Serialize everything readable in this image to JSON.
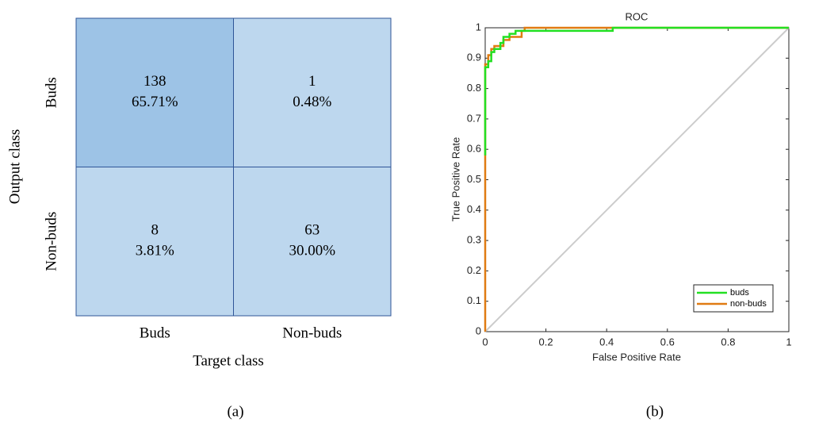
{
  "chart_data": [
    {
      "type": "confusion-matrix",
      "xlabel": "Target class",
      "ylabel": "Output class",
      "caption": "(a)",
      "x_categories": [
        "Buds",
        "Non-buds"
      ],
      "y_categories": [
        "Buds",
        "Non-buds"
      ],
      "values": [
        [
          138,
          1
        ],
        [
          8,
          63
        ]
      ],
      "percent_labels": [
        [
          "65.71%",
          "0.48%"
        ],
        [
          "3.81%",
          "30.00%"
        ]
      ],
      "color_low": "#bdd7ee",
      "color_high": "#9dc3e6",
      "border_color": "#2f5597"
    },
    {
      "type": "line",
      "title": "ROC",
      "xlabel": "False Positive Rate",
      "ylabel": "True Positive Rate",
      "caption": "(b)",
      "xlim": [
        0,
        1
      ],
      "ylim": [
        0,
        1
      ],
      "xticks": [
        0,
        0.2,
        0.4,
        0.6,
        0.8,
        1
      ],
      "yticks": [
        0,
        0.1,
        0.2,
        0.3,
        0.4,
        0.5,
        0.6,
        0.7,
        0.8,
        0.9,
        1
      ],
      "grid": false,
      "legend": "southeast",
      "reference_color": "#cccccc",
      "series": [
        {
          "name": "buds",
          "color": "#22e022",
          "x": [
            0,
            0,
            0.01,
            0.01,
            0.02,
            0.02,
            0.03,
            0.03,
            0.05,
            0.05,
            0.06,
            0.06,
            0.08,
            0.08,
            0.1,
            0.1,
            0.42,
            0.42,
            1
          ],
          "values": [
            0.58,
            0.87,
            0.87,
            0.89,
            0.89,
            0.92,
            0.92,
            0.93,
            0.93,
            0.95,
            0.95,
            0.97,
            0.97,
            0.98,
            0.98,
            0.99,
            0.99,
            1,
            1
          ]
        },
        {
          "name": "non-buds",
          "color": "#e07b12",
          "x": [
            0,
            0,
            0.01,
            0.01,
            0.02,
            0.02,
            0.03,
            0.03,
            0.06,
            0.06,
            0.08,
            0.08,
            0.12,
            0.12,
            0.13,
            0.13,
            1
          ],
          "values": [
            0,
            0.88,
            0.88,
            0.91,
            0.91,
            0.93,
            0.93,
            0.94,
            0.94,
            0.96,
            0.96,
            0.97,
            0.97,
            0.99,
            0.99,
            1,
            1
          ]
        }
      ]
    }
  ]
}
